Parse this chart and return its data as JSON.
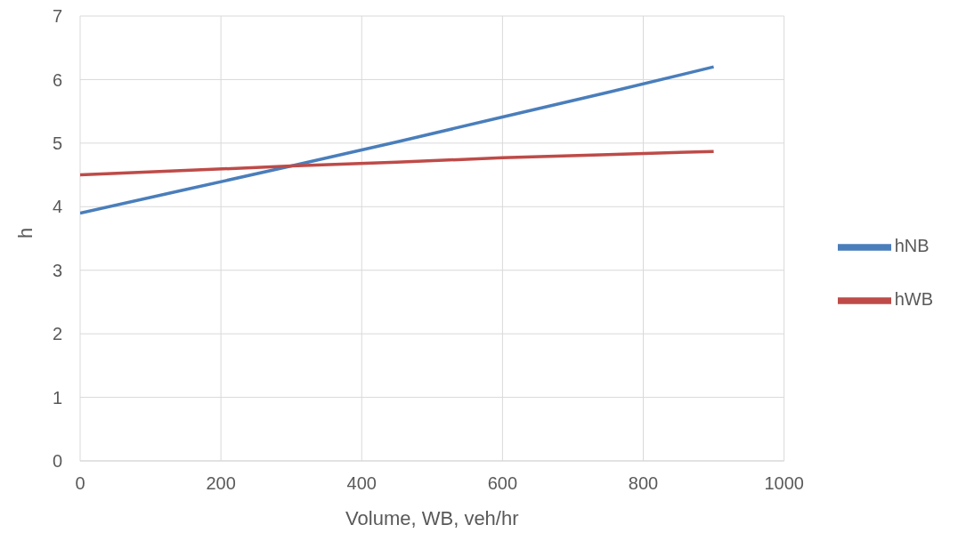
{
  "chart_data": {
    "type": "line",
    "xlabel": "Volume, WB, veh/hr",
    "ylabel": "h",
    "x": [
      0,
      150,
      300,
      450,
      600,
      750,
      900
    ],
    "series": [
      {
        "name": "hNB",
        "color": "#4a7ebb",
        "values": [
          3.9,
          4.27,
          4.64,
          5.02,
          5.41,
          5.8,
          6.2
        ]
      },
      {
        "name": "hWB",
        "color": "#be4b48",
        "values": [
          4.5,
          4.57,
          4.64,
          4.7,
          4.77,
          4.82,
          4.87
        ]
      }
    ],
    "xlim": [
      0,
      1000
    ],
    "xticks": [
      0,
      200,
      400,
      600,
      800,
      1000
    ],
    "ylim": [
      0,
      7
    ],
    "yticks": [
      0,
      1,
      2,
      3,
      4,
      5,
      6,
      7
    ],
    "grid": true,
    "legend": "right",
    "marker": "none",
    "line_style": "solid"
  }
}
